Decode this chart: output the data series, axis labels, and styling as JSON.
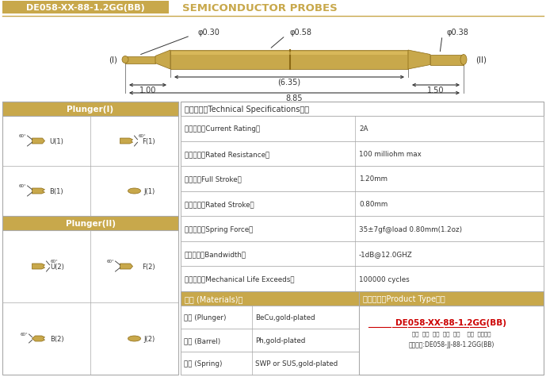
{
  "title_box_text": "DE058-XX-88-1.2GG(BB)",
  "title_text": "SEMICONDUCTOR PROBES",
  "bg_color": "#FFFFFF",
  "gold_color": "#C8A84B",
  "dark_color": "#333333",
  "border_color": "#AAAAAA",
  "red_color": "#CC0000",
  "white": "#FFFFFF",
  "specs": [
    [
      "额定电流（Current Rating）",
      "2A"
    ],
    [
      "额定电际（Rated Resistance）",
      "100 milliohm max"
    ],
    [
      "满行程（Full Stroke）",
      "1.20mm"
    ],
    [
      "额定行程（Rated Stroke）",
      "0.80mm"
    ],
    [
      "额定弹力（Spring Force）",
      "35±7gf@load 0.80mm(1.2oz)"
    ],
    [
      "频率带宽（Bandwidth）",
      "-1dB@12.0GHZ"
    ],
    [
      "测试寿命（Mechanical Life Exceeds）",
      "100000 cycles"
    ]
  ],
  "materials": [
    [
      "针头 (Plunger)",
      "BeCu,gold-plated"
    ],
    [
      "针管 (Barrel)",
      "Ph,gold-plated"
    ],
    [
      "弹簧 (Spring)",
      "SWP or SUS,gold-plated"
    ]
  ],
  "tech_title": "技术要求（Technical Specifications）：",
  "materials_title": "材质 (Materials)：",
  "product_type_title": "成品型号（Product Type）：",
  "product_type_code": "DE058-XX-88-1.2GG(BB)",
  "product_type_labels": "系列  规格  头型  归长  弹力    镀金  针头材质",
  "product_order": "订购举例:DE058-JJ-88-1.2GG(BB)",
  "dim_d030": "φ0.30",
  "dim_d058": "φ0.58",
  "dim_d038": "φ0.38",
  "dim_635": "(6.35)",
  "dim_100": "1.00",
  "dim_150": "1.50",
  "dim_885": "8.85",
  "label_I": "(I)",
  "label_II": "(II)",
  "plunger1_header": "Plunger(I)",
  "plunger2_header": "Plunger(II)"
}
